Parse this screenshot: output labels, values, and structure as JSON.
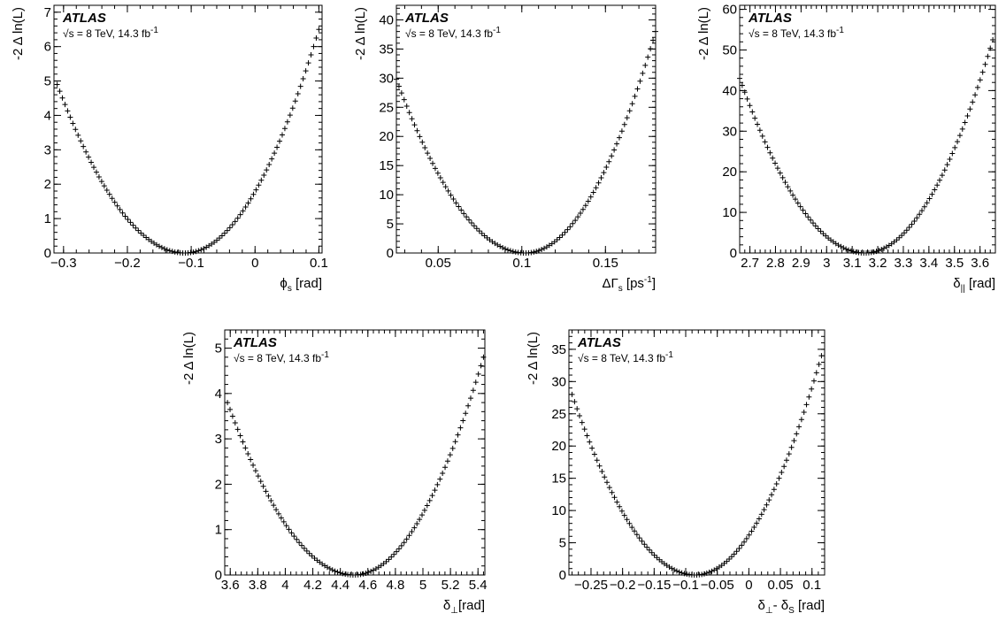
{
  "chart_data": [
    {
      "type": "scatter",
      "experiment": "ATLAS",
      "energy_label": "√s = 8 TeV, 14.3 fb",
      "energy_label_sup": "-1",
      "ylabel": "-2 Δ ln(L)",
      "xlabel": "ϕ",
      "xlabel_sub": "s",
      "xlabel_unit": " [rad]",
      "xlim": [
        -0.315,
        0.105
      ],
      "ylim": [
        0,
        7.2
      ],
      "xticks": [
        -0.3,
        -0.2,
        -0.1,
        0,
        0.1
      ],
      "xtick_labels": [
        "−0.3",
        "−0.2",
        "−0.1",
        "0",
        "0.1"
      ],
      "yticks": [
        0,
        1,
        2,
        3,
        4,
        5,
        6,
        7
      ],
      "ytick_labels": [
        "0",
        "1",
        "2",
        "3",
        "4",
        "5",
        "6",
        "7"
      ],
      "curve": {
        "min_x": -0.11,
        "x": [
          -0.31,
          0.1
        ],
        "y": [
          4.9,
          6.5
        ]
      }
    },
    {
      "type": "scatter",
      "experiment": "ATLAS",
      "energy_label": "√s = 8 TeV, 14.3 fb",
      "energy_label_sup": "-1",
      "ylabel": "-2 Δ ln(L)",
      "xlabel": "ΔΓ",
      "xlabel_sub": "s",
      "xlabel_unit": " [ps",
      "xlabel_unit_sup": "-1",
      "xlabel_unit_end": "]",
      "xlim": [
        0.025,
        0.18
      ],
      "ylim": [
        0,
        42.5
      ],
      "xticks": [
        0.05,
        0.1,
        0.15
      ],
      "xtick_labels": [
        "0.05",
        "0.1",
        "0.15"
      ],
      "yticks": [
        0,
        5,
        10,
        15,
        20,
        25,
        30,
        35,
        40
      ],
      "ytick_labels": [
        "0",
        "5",
        "10",
        "15",
        "20",
        "25",
        "30",
        "35",
        "40"
      ],
      "curve": {
        "min_x": 0.102,
        "x": [
          0.025,
          0.18
        ],
        "y": [
          29.8,
          38.0
        ]
      }
    },
    {
      "type": "scatter",
      "experiment": "ATLAS",
      "energy_label": "√s = 8 TeV, 14.3 fb",
      "energy_label_sup": "-1",
      "ylabel": "-2 Δ ln(L)",
      "xlabel": "δ",
      "xlabel_sub": "||",
      "xlabel_unit": " [rad]",
      "xlim": [
        2.66,
        3.66
      ],
      "ylim": [
        0,
        61
      ],
      "xticks": [
        2.7,
        2.8,
        2.9,
        3.0,
        3.1,
        3.2,
        3.3,
        3.4,
        3.5,
        3.6
      ],
      "xtick_labels": [
        "2.7",
        "2.8",
        "2.9",
        "3",
        "3.1",
        "3.2",
        "3.3",
        "3.4",
        "3.5",
        "3.6"
      ],
      "yticks": [
        0,
        10,
        20,
        30,
        40,
        50,
        60
      ],
      "ytick_labels": [
        "0",
        "10",
        "20",
        "30",
        "40",
        "50",
        "60"
      ],
      "curve": {
        "min_x": 3.15,
        "x": [
          2.66,
          3.65
        ],
        "y": [
          43.0,
          52.5
        ]
      }
    },
    {
      "type": "scatter",
      "experiment": "ATLAS",
      "energy_label": "√s = 8 TeV, 14.3 fb",
      "energy_label_sup": "-1",
      "ylabel": "-2 Δ ln(L)",
      "xlabel": "δ",
      "xlabel_sub": "⊥",
      "xlabel_unit": "[rad]",
      "xlim": [
        3.56,
        5.45
      ],
      "ylim": [
        0,
        5.4
      ],
      "xticks": [
        3.6,
        3.8,
        4.0,
        4.2,
        4.4,
        4.6,
        4.8,
        5.0,
        5.2,
        5.4
      ],
      "xtick_labels": [
        "3.6",
        "3.8",
        "4",
        "4.2",
        "4.4",
        "4.6",
        "4.8",
        "5",
        "5.2",
        "5.4"
      ],
      "yticks": [
        0,
        1,
        2,
        3,
        4,
        5
      ],
      "ytick_labels": [
        "0",
        "1",
        "2",
        "3",
        "4",
        "5"
      ],
      "curve": {
        "min_x": 4.5,
        "x": [
          3.58,
          5.44
        ],
        "y": [
          3.8,
          4.8
        ]
      }
    },
    {
      "type": "scatter",
      "experiment": "ATLAS",
      "energy_label": "√s = 8 TeV, 14.3 fb",
      "energy_label_sup": "-1",
      "ylabel": "-2 Δ ln(L)",
      "xlabel": "δ",
      "xlabel_sub": "⊥",
      "xlabel_unit": "- δ",
      "xlabel_unit_sub": "S",
      "xlabel_unit_end": " [rad]",
      "xlim": [
        -0.285,
        0.12
      ],
      "ylim": [
        0,
        38
      ],
      "xticks": [
        -0.25,
        -0.2,
        -0.15,
        -0.1,
        -0.05,
        0,
        0.05,
        0.1
      ],
      "xtick_labels": [
        "−0.25",
        "−0.2",
        "−0.15",
        "−0.1",
        "−0.05",
        "0",
        "0.05",
        "0.1"
      ],
      "yticks": [
        0,
        5,
        10,
        15,
        20,
        25,
        30,
        35
      ],
      "ytick_labels": [
        "0",
        "5",
        "10",
        "15",
        "20",
        "25",
        "30",
        "35"
      ],
      "curve": {
        "min_x": -0.085,
        "x": [
          -0.28,
          0.115
        ],
        "y": [
          28.0,
          34.0
        ]
      }
    }
  ]
}
